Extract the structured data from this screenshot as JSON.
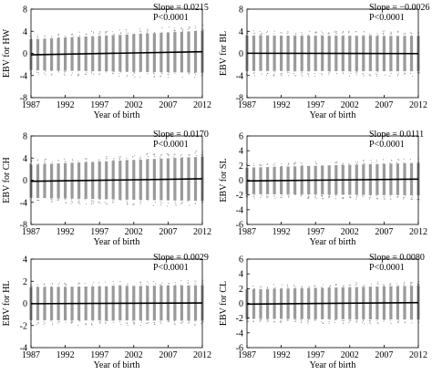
{
  "chart_data": [
    {
      "type": "scatter",
      "ylabel": "EBV for HW",
      "xlabel": "Year of birth",
      "annotation": [
        "Slope = 0.0215",
        "P<0.0001"
      ],
      "xlim": [
        1987,
        2012
      ],
      "ylim": [
        -8,
        8
      ],
      "yticks": [
        -8,
        -4,
        0,
        4,
        8
      ],
      "xticks": [
        1987,
        1992,
        1997,
        2002,
        2007,
        2012
      ],
      "spread": [
        2.8,
        3.8
      ],
      "trend": [
        -0.25,
        0.3
      ]
    },
    {
      "type": "scatter",
      "ylabel": "EBV for BL",
      "xlabel": "Year of birth",
      "annotation": [
        "Slope = −0.0026",
        "P<0.0001"
      ],
      "xlim": [
        1987,
        2012
      ],
      "ylim": [
        -8,
        8
      ],
      "yticks": [
        -8,
        -4,
        0,
        4,
        8
      ],
      "xticks": [
        1987,
        1992,
        1997,
        2002,
        2007,
        2012
      ],
      "spread": [
        3.2,
        3.2
      ],
      "trend": [
        0.02,
        -0.04
      ]
    },
    {
      "type": "scatter",
      "ylabel": "EBV for CH",
      "xlabel": "Year of birth",
      "annotation": [
        "Slope = 0.0170",
        "P<0.0001"
      ],
      "xlim": [
        1987,
        2012
      ],
      "ylim": [
        -8,
        8
      ],
      "yticks": [
        -8,
        -4,
        0,
        4,
        8
      ],
      "xticks": [
        1987,
        1992,
        1997,
        2002,
        2007,
        2012
      ],
      "spread": [
        3.0,
        4.0
      ],
      "trend": [
        -0.2,
        0.25
      ]
    },
    {
      "type": "scatter",
      "ylabel": "EBV for SL",
      "xlabel": "Year of birth",
      "annotation": [
        "Slope = 0.0111",
        "P<0.0001"
      ],
      "xlim": [
        1987,
        2012
      ],
      "ylim": [
        -6,
        6
      ],
      "yticks": [
        -6,
        -4,
        -2,
        0,
        2,
        4,
        6
      ],
      "xticks": [
        1987,
        1992,
        1997,
        2002,
        2007,
        2012
      ],
      "spread": [
        1.8,
        2.2
      ],
      "trend": [
        -0.1,
        0.15
      ]
    },
    {
      "type": "scatter",
      "ylabel": "EBV for HL",
      "xlabel": "Year of birth",
      "annotation": [
        "Slope = 0.0029",
        "P<0.0001"
      ],
      "xlim": [
        1987,
        2012
      ],
      "ylim": [
        -4,
        4
      ],
      "yticks": [
        -4,
        -2,
        0,
        2,
        4
      ],
      "xticks": [
        1987,
        1992,
        1997,
        2002,
        2007,
        2012
      ],
      "spread": [
        1.5,
        1.6
      ],
      "trend": [
        -0.03,
        0.04
      ]
    },
    {
      "type": "scatter",
      "ylabel": "EBV for CL",
      "xlabel": "Year of birth",
      "annotation": [
        "Slope = 0.0080",
        "P<0.0001"
      ],
      "xlim": [
        1987,
        2012
      ],
      "ylim": [
        -6,
        6
      ],
      "yticks": [
        -6,
        -4,
        -2,
        0,
        2,
        4,
        6
      ],
      "xticks": [
        1987,
        1992,
        1997,
        2002,
        2007,
        2012
      ],
      "spread": [
        2.0,
        2.3
      ],
      "trend": [
        -0.1,
        0.1
      ]
    }
  ]
}
